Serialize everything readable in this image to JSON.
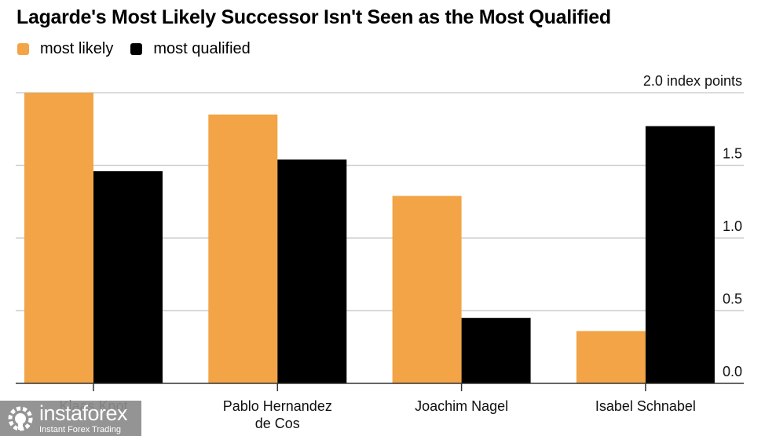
{
  "chart_data": {
    "type": "bar",
    "title": "Lagarde's Most Likely Successor Isn't Seen as the Most Qualified",
    "xlabel": "",
    "ylabel": "index points",
    "unit_label": "2.0 index points",
    "categories": [
      [
        "Klaas Knot"
      ],
      [
        "Pablo Hernandez",
        "de Cos"
      ],
      [
        "Joachim Nagel"
      ],
      [
        "Isabel Schnabel"
      ]
    ],
    "series": [
      {
        "name": "most likely",
        "color": "#f2a446",
        "values": [
          2.0,
          1.85,
          1.29,
          0.36
        ]
      },
      {
        "name": "most qualified",
        "color": "#000000",
        "values": [
          1.46,
          1.54,
          0.45,
          1.77
        ]
      }
    ],
    "ylim": [
      0,
      2.0
    ],
    "yticks": [
      0.0,
      0.5,
      1.0,
      1.5,
      2.0
    ],
    "ytick_labels": [
      "0.0",
      "0.5",
      "1.0",
      "1.5",
      "2.0 index points"
    ],
    "grid": true,
    "y_axis_side": "right",
    "legend_position": "top-left"
  },
  "legend": [
    {
      "label": "most likely",
      "color": "#f2a446"
    },
    {
      "label": "most qualified",
      "color": "#000000"
    }
  ],
  "watermark": {
    "brand": "instaforex",
    "tagline": "Instant Forex Trading"
  }
}
